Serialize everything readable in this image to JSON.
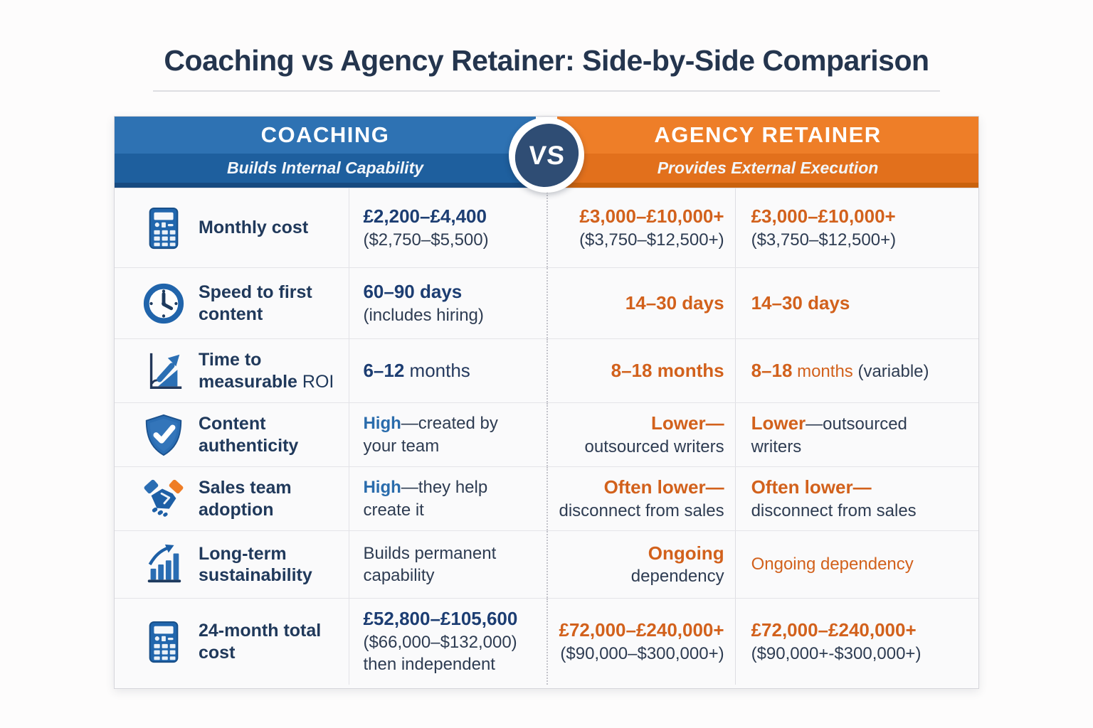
{
  "title": "Coaching vs Agency Retainer: Side-by-Side Comparison",
  "versus_badge": "VS",
  "columns": {
    "coaching": {
      "title": "COACHING",
      "subtitle": "Builds Internal Capability"
    },
    "agency": {
      "title": "AGENCY RETAINER",
      "subtitle": "Provides External Execution"
    }
  },
  "colors": {
    "coaching_blue": "#2e72b3",
    "coaching_blue_dark": "#1e5f9e",
    "agency_orange": "#ee7e28",
    "agency_orange_dark": "#e2701c",
    "value_navy": "#1c3d72",
    "value_blue": "#2a6cac",
    "value_orange": "#d2611c",
    "dark_text": "#2e3c52",
    "vs_circle": "#2f4d74"
  },
  "rows": [
    {
      "icon": "calculator-icon",
      "label": [
        {
          "t": "Monthly cost",
          "b": 1
        }
      ],
      "coaching": [
        [
          {
            "t": "£2,200–£4,400",
            "s": "nb"
          }
        ],
        [
          {
            "t": "($2,750–$5,500)",
            "s": "d"
          }
        ]
      ],
      "agency_a": [
        [
          {
            "t": "£3,000–£10,000+",
            "s": "ob"
          }
        ],
        [
          {
            "t": "($3,750–$12,500+)",
            "s": "d"
          }
        ]
      ],
      "agency_b": [
        [
          {
            "t": "£3,000–£10,000+",
            "s": "ob"
          }
        ],
        [
          {
            "t": "($3,750–$12,500+)",
            "s": "d"
          }
        ]
      ]
    },
    {
      "icon": "clock-icon",
      "label": [
        {
          "t": "Speed to first content",
          "b": 1
        }
      ],
      "coaching": [
        [
          {
            "t": "60–90 days",
            "s": "nb"
          }
        ],
        [
          {
            "t": "(includes hiring)",
            "s": "d"
          }
        ]
      ],
      "agency_a": [
        [
          {
            "t": "14–30 days",
            "s": "ob"
          }
        ]
      ],
      "agency_b": [
        [
          {
            "t": "14–30 days",
            "s": "ob"
          }
        ]
      ]
    },
    {
      "icon": "roi-trend-icon",
      "label": [
        {
          "t": "Time to measurable ",
          "b": 1
        },
        {
          "t": "ROI",
          "b": 0
        }
      ],
      "coaching": [
        [
          {
            "t": "6–12",
            "s": "nb"
          },
          {
            "t": " months",
            "s": "nr"
          }
        ]
      ],
      "agency_a": [
        [
          {
            "t": "8–18 months",
            "s": "ob"
          }
        ]
      ],
      "agency_b": [
        [
          {
            "t": "8–18",
            "s": "ob"
          },
          {
            "t": " months ",
            "s": "or"
          },
          {
            "t": "(variable)",
            "s": "d"
          }
        ]
      ]
    },
    {
      "icon": "shield-check-icon",
      "label": [
        {
          "t": "Content authenticity",
          "b": 1
        }
      ],
      "coaching": [
        [
          {
            "t": "High",
            "s": "bb"
          },
          {
            "t": "—created by",
            "s": "d"
          }
        ],
        [
          {
            "t": "your team",
            "s": "d"
          }
        ]
      ],
      "agency_a": [
        [
          {
            "t": "Lower—",
            "s": "ob"
          }
        ],
        [
          {
            "t": "outsourced writers",
            "s": "d"
          }
        ]
      ],
      "agency_b": [
        [
          {
            "t": "Lower",
            "s": "ob"
          },
          {
            "t": "—outsourced",
            "s": "d"
          }
        ],
        [
          {
            "t": "writers",
            "s": "d"
          }
        ]
      ]
    },
    {
      "icon": "handshake-icon",
      "label": [
        {
          "t": "Sales team adoption",
          "b": 1
        }
      ],
      "coaching": [
        [
          {
            "t": "High",
            "s": "bb"
          },
          {
            "t": "—they help",
            "s": "d"
          }
        ],
        [
          {
            "t": "create it",
            "s": "d"
          }
        ]
      ],
      "agency_a": [
        [
          {
            "t": "Often lower—",
            "s": "ob"
          }
        ],
        [
          {
            "t": "disconnect from sales",
            "s": "d"
          }
        ]
      ],
      "agency_b": [
        [
          {
            "t": "Often lower—",
            "s": "ob"
          }
        ],
        [
          {
            "t": "disconnect from sales",
            "s": "d"
          }
        ]
      ]
    },
    {
      "icon": "growth-bars-icon",
      "label": [
        {
          "t": "Long-term sustainability",
          "b": 1
        }
      ],
      "coaching": [
        [
          {
            "t": "Builds permanent",
            "s": "d"
          }
        ],
        [
          {
            "t": "capability",
            "s": "d"
          }
        ]
      ],
      "agency_a": [
        [
          {
            "t": "Ongoing",
            "s": "ob"
          }
        ],
        [
          {
            "t": "dependency",
            "s": "d"
          }
        ]
      ],
      "agency_b": [
        [
          {
            "t": "Ongoing dependency",
            "s": "or"
          }
        ]
      ]
    },
    {
      "icon": "calculator-icon",
      "label": [
        {
          "t": "24-month total cost",
          "b": 1
        }
      ],
      "coaching": [
        [
          {
            "t": "£52,800–£105,600",
            "s": "nb"
          }
        ],
        [
          {
            "t": "($66,000–$132,000)",
            "s": "d"
          }
        ],
        [
          {
            "t": "then independent",
            "s": "d"
          }
        ]
      ],
      "agency_a": [
        [
          {
            "t": "£72,000–£240,000+",
            "s": "ob"
          }
        ],
        [
          {
            "t": "($90,000–$300,000+)",
            "s": "d"
          }
        ]
      ],
      "agency_b": [
        [
          {
            "t": "£72,000–£240,000+",
            "s": "ob"
          }
        ],
        [
          {
            "t": "($90,000+-$300,000+)",
            "s": "d"
          }
        ]
      ]
    }
  ]
}
